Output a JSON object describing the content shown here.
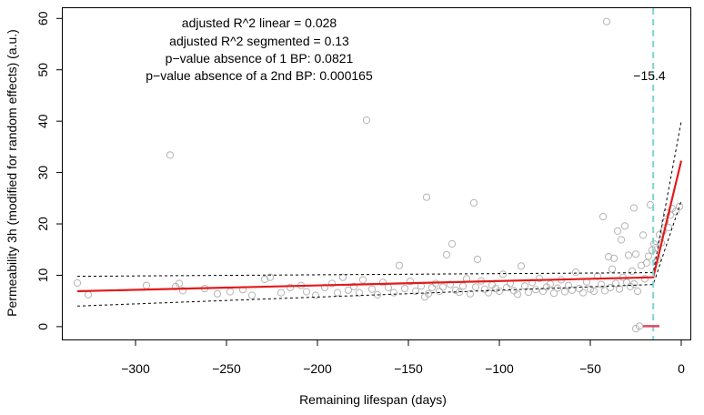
{
  "colors": {
    "points": "#b5b5b5",
    "fit_line": "#e41a1c",
    "ci_line": "#000000",
    "breakpoint_line": "#7fd3d3",
    "breakpoint_ci": "#e0465e",
    "axis": "#000000"
  },
  "chart_data": {
    "type": "scatter",
    "xlabel": "Remaining lifespan (days)",
    "ylabel": "Permeability 3h (modified for random effects) (a.u.)",
    "xlim": [
      -340,
      5
    ],
    "ylim": [
      -2.5,
      62
    ],
    "xticks": [
      -300,
      -250,
      -200,
      -150,
      -100,
      -50,
      0
    ],
    "xtick_labels": [
      "−300",
      "−250",
      "−200",
      "−150",
      "−100",
      "−50",
      "0"
    ],
    "yticks": [
      0,
      10,
      20,
      30,
      40,
      50,
      60
    ],
    "ytick_labels": [
      "0",
      "10",
      "20",
      "30",
      "40",
      "50",
      "60"
    ],
    "grid": false,
    "annotations": {
      "line1": "adjusted R^2 linear = 0.028",
      "line2": "adjusted R^2 segmented = 0.13",
      "line3": "p−value absence of 1 BP: 0.0821",
      "line4": "p−value absence of a 2nd BP: 0.000165",
      "breakpoint_label": "−15.4"
    },
    "breakpoint": {
      "x": -15.4,
      "ci": [
        -21,
        -12
      ]
    },
    "fit": {
      "x": [
        -332,
        -15.4,
        0
      ],
      "y": [
        6.9,
        9.6,
        32.3
      ]
    },
    "ci_upper": {
      "x": [
        -332,
        -15.4,
        0
      ],
      "y": [
        9.8,
        10.5,
        40.0
      ]
    },
    "ci_lower": {
      "x": [
        -332,
        -15.4,
        0
      ],
      "y": [
        4.0,
        8.2,
        24.5
      ]
    },
    "points": [
      [
        -332,
        8.5
      ],
      [
        -326,
        6.2
      ],
      [
        -294,
        8.0
      ],
      [
        -281,
        33.4
      ],
      [
        -278,
        7.8
      ],
      [
        -276,
        8.4
      ],
      [
        -274,
        7.0
      ],
      [
        -262,
        7.4
      ],
      [
        -255,
        6.4
      ],
      [
        -248,
        6.8
      ],
      [
        -241,
        7.2
      ],
      [
        -236,
        6.1
      ],
      [
        -229,
        9.2
      ],
      [
        -226,
        9.6
      ],
      [
        -220,
        6.6
      ],
      [
        -215,
        7.6
      ],
      [
        -209,
        8.0
      ],
      [
        -206,
        6.8
      ],
      [
        -201,
        6.1
      ],
      [
        -196,
        7.6
      ],
      [
        -192,
        8.4
      ],
      [
        -189,
        6.6
      ],
      [
        -186,
        9.6
      ],
      [
        -183,
        7.1
      ],
      [
        -180,
        7.8
      ],
      [
        -177,
        6.6
      ],
      [
        -175,
        9.1
      ],
      [
        -173,
        40.2
      ],
      [
        -170,
        7.3
      ],
      [
        -167,
        6.2
      ],
      [
        -164,
        8.6
      ],
      [
        -161,
        7.6
      ],
      [
        -158,
        6.6
      ],
      [
        -155,
        11.9
      ],
      [
        -152,
        7.4
      ],
      [
        -149,
        8.8
      ],
      [
        -146,
        6.9
      ],
      [
        -143,
        7.9
      ],
      [
        -141,
        5.8
      ],
      [
        -140,
        25.2
      ],
      [
        -139,
        6.4
      ],
      [
        -137,
        7.6
      ],
      [
        -135,
        8.4
      ],
      [
        -133,
        6.9
      ],
      [
        -131,
        7.7
      ],
      [
        -129,
        14.0
      ],
      [
        -127,
        8.2
      ],
      [
        -126,
        16.1
      ],
      [
        -124,
        7.1
      ],
      [
        -122,
        6.7
      ],
      [
        -120,
        7.9
      ],
      [
        -118,
        9.3
      ],
      [
        -116,
        6.4
      ],
      [
        -114,
        24.1
      ],
      [
        -113,
        7.7
      ],
      [
        -112,
        13.1
      ],
      [
        -110,
        8.9
      ],
      [
        -108,
        7.3
      ],
      [
        -106,
        6.6
      ],
      [
        -104,
        8.1
      ],
      [
        -102,
        7.4
      ],
      [
        -100,
        6.9
      ],
      [
        -98,
        10.2
      ],
      [
        -96,
        7.6
      ],
      [
        -94,
        8.4
      ],
      [
        -92,
        7.0
      ],
      [
        -90,
        6.3
      ],
      [
        -88,
        11.8
      ],
      [
        -86,
        7.9
      ],
      [
        -84,
        6.7
      ],
      [
        -82,
        8.6
      ],
      [
        -80,
        7.2
      ],
      [
        -78,
        9.4
      ],
      [
        -76,
        6.9
      ],
      [
        -74,
        7.7
      ],
      [
        -72,
        8.3
      ],
      [
        -70,
        6.5
      ],
      [
        -68,
        7.5
      ],
      [
        -66,
        9.1
      ],
      [
        -64,
        6.8
      ],
      [
        -62,
        8.0
      ],
      [
        -60,
        7.1
      ],
      [
        -58,
        10.6
      ],
      [
        -56,
        7.4
      ],
      [
        -54,
        6.6
      ],
      [
        -52,
        8.7
      ],
      [
        -50,
        7.3
      ],
      [
        -48,
        6.9
      ],
      [
        -46,
        9.8
      ],
      [
        -44,
        8.2
      ],
      [
        -43,
        21.4
      ],
      [
        -42,
        7.0
      ],
      [
        -41,
        59.4
      ],
      [
        -40,
        13.6
      ],
      [
        -39,
        7.6
      ],
      [
        -38,
        11.2
      ],
      [
        -37,
        13.3
      ],
      [
        -36,
        8.4
      ],
      [
        -35,
        18.6
      ],
      [
        -34,
        7.3
      ],
      [
        -33,
        16.9
      ],
      [
        -32,
        9.6
      ],
      [
        -31,
        19.6
      ],
      [
        -30,
        8.6
      ],
      [
        -29,
        13.9
      ],
      [
        -28,
        7.8
      ],
      [
        -27,
        10.8
      ],
      [
        -26,
        23.1
      ],
      [
        -26,
        8.3
      ],
      [
        -25,
        14.1
      ],
      [
        -24,
        6.9
      ],
      [
        -23,
        0.1
      ],
      [
        -22,
        11.9
      ],
      [
        -21,
        17.8
      ],
      [
        -20,
        9.3
      ],
      [
        -19,
        12.4
      ],
      [
        -18,
        13.7
      ],
      [
        -17,
        23.7
      ],
      [
        -16,
        14.9
      ],
      [
        -15,
        16.1
      ],
      [
        -14,
        15.4
      ],
      [
        -13,
        13.1
      ],
      [
        -12,
        17.9
      ],
      [
        -11,
        16.3
      ],
      [
        -10,
        18.6
      ],
      [
        -9,
        20.4
      ],
      [
        -8,
        22.1
      ],
      [
        -7,
        19.3
      ],
      [
        -6,
        21.7
      ],
      [
        -5,
        23.0
      ],
      [
        -3,
        22.4
      ],
      [
        -1,
        23.4
      ],
      [
        -25,
        -0.4
      ]
    ]
  }
}
